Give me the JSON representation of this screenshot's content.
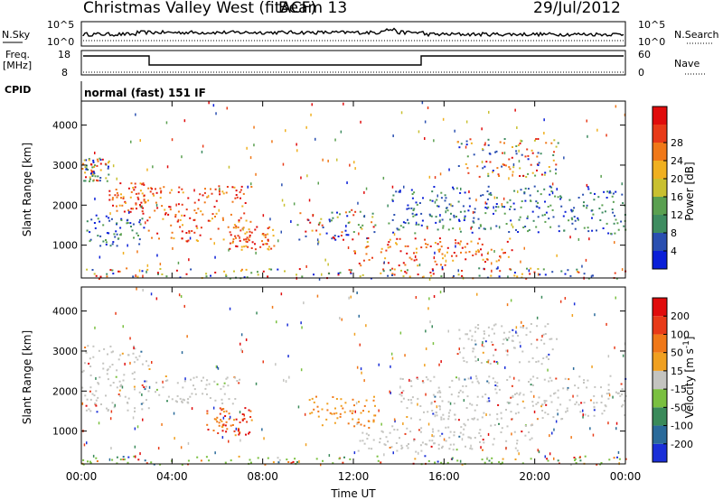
{
  "header": {
    "title": "Christmas Valley West (fitACF)",
    "beam": "Beam 13",
    "date": "29/Jul/2012"
  },
  "top_panels": {
    "nsky_label": "N.Sky",
    "nsky_ticks_left": [
      "10^5",
      "10^0"
    ],
    "nsky_ticks_right": [
      "10^5",
      "10^0"
    ],
    "nsearch_label": "N.Search",
    "freq_label_1": "Freq.",
    "freq_label_2": "[MHz]",
    "freq_ticks": [
      "18",
      "8"
    ],
    "nave_ticks": [
      "60",
      "0"
    ],
    "nave_label": "Nave",
    "cpid_label": "CPID",
    "cpid_value": "normal (fast) 151 IF"
  },
  "chart_data": [
    {
      "type": "heatmap",
      "title": "",
      "xlabel": "",
      "ylabel": "Slant Range [km]",
      "x_ticks": [
        "00:00",
        "04:00",
        "08:00",
        "12:00",
        "16:00",
        "20:00",
        "00:00"
      ],
      "y_ticks": [
        "1000",
        "2000",
        "3000",
        "4000"
      ],
      "xlim": [
        0,
        24
      ],
      "ylim": [
        180,
        4600
      ],
      "colorbar": {
        "label": "Power [dB]",
        "ticks": [
          "4",
          "8",
          "12",
          "16",
          "20",
          "24",
          "28"
        ],
        "colors": [
          "#0a1fd8",
          "#2a4fb0",
          "#3e8c60",
          "#5aa050",
          "#c9c030",
          "#f0b020",
          "#f07818",
          "#e83a18",
          "#e00c0c"
        ]
      },
      "features": [
        {
          "t": [
            0.0,
            1.2
          ],
          "r": [
            2600,
            3200
          ],
          "level": "mixed"
        },
        {
          "t": [
            1.2,
            2.8
          ],
          "r": [
            1800,
            2600
          ],
          "level": "high"
        },
        {
          "t": [
            0.2,
            2.8
          ],
          "r": [
            1000,
            1800
          ],
          "level": "low"
        },
        {
          "t": [
            2.8,
            7.5
          ],
          "r": [
            1100,
            2500
          ],
          "level": "high"
        },
        {
          "t": [
            6.5,
            8.5
          ],
          "r": [
            900,
            1500
          ],
          "level": "high"
        },
        {
          "t": [
            9.5,
            13.0
          ],
          "r": [
            1100,
            1900
          ],
          "level": "mixed"
        },
        {
          "t": [
            12.0,
            19.0
          ],
          "r": [
            500,
            1200
          ],
          "level": "high"
        },
        {
          "t": [
            13.5,
            24.0
          ],
          "r": [
            1300,
            2500
          ],
          "level": "low"
        },
        {
          "t": [
            16.5,
            21.0
          ],
          "r": [
            2700,
            3700
          ],
          "level": "mixed"
        },
        {
          "t": [
            0.0,
            24.0
          ],
          "r": [
            180,
            450
          ],
          "level": "mixed"
        }
      ]
    },
    {
      "type": "heatmap",
      "title": "",
      "xlabel": "Time UT",
      "ylabel": "Slant Range [km]",
      "x_ticks": [
        "00:00",
        "04:00",
        "08:00",
        "12:00",
        "16:00",
        "20:00",
        "00:00"
      ],
      "y_ticks": [
        "1000",
        "2000",
        "3000",
        "4000"
      ],
      "xlim": [
        0,
        24
      ],
      "ylim": [
        180,
        4600
      ],
      "colorbar": {
        "label": "Velocity [m s^-1]",
        "ticks": [
          "200",
          "100",
          "50",
          "15",
          "-15",
          "-50",
          "-100",
          "-200"
        ],
        "colors": [
          "#1a2fd8",
          "#2a6a9a",
          "#3a8a5a",
          "#7ac040",
          "#c4c4c0",
          "#f0a020",
          "#f07818",
          "#e83a18",
          "#e00c0c"
        ]
      },
      "features": [
        {
          "t": [
            0.0,
            3.0
          ],
          "r": [
            1500,
            3200
          ],
          "level": "ground"
        },
        {
          "t": [
            3.0,
            7.0
          ],
          "r": [
            1700,
            2400
          ],
          "level": "ground"
        },
        {
          "t": [
            5.5,
            7.5
          ],
          "r": [
            900,
            1600
          ],
          "level": "away_strong"
        },
        {
          "t": [
            10.0,
            13.0
          ],
          "r": [
            1100,
            1900
          ],
          "level": "away"
        },
        {
          "t": [
            12.0,
            20.0
          ],
          "r": [
            500,
            1200
          ],
          "level": "ground"
        },
        {
          "t": [
            14.0,
            24.0
          ],
          "r": [
            1300,
            2400
          ],
          "level": "ground"
        },
        {
          "t": [
            16.5,
            21.0
          ],
          "r": [
            2700,
            3700
          ],
          "level": "ground"
        },
        {
          "t": [
            0.0,
            24.0
          ],
          "r": [
            180,
            400
          ],
          "level": "toward"
        }
      ]
    }
  ]
}
